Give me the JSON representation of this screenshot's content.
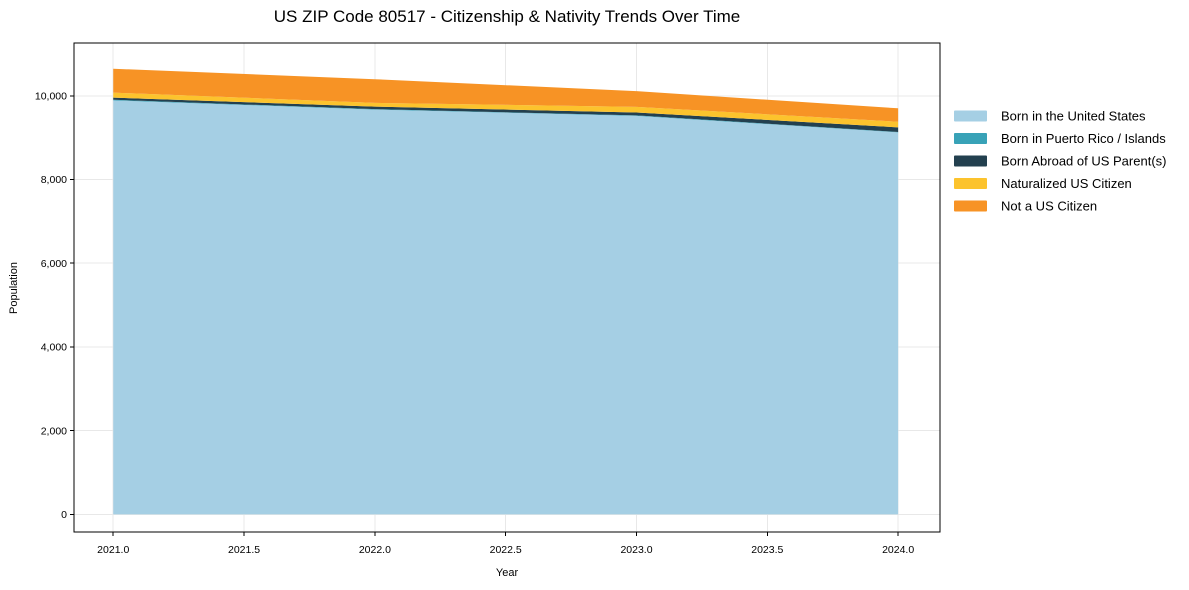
{
  "figure": {
    "background": "#ffffff",
    "frame_color": "#000000",
    "text_color": "#000000"
  },
  "chart_data": {
    "type": "area",
    "stacked": true,
    "title": "US ZIP Code 80517 - Citizenship & Nativity Trends Over Time",
    "xlabel": "Year",
    "ylabel": "Population",
    "x": [
      2021,
      2022,
      2023,
      2024
    ],
    "series": [
      {
        "name": "Born in the United States",
        "color": "#a5cfe4",
        "values": [
          9890,
          9670,
          9520,
          9125
        ]
      },
      {
        "name": "Born in Puerto Rico / Islands",
        "color": "#38a2b7",
        "values": [
          15,
          10,
          10,
          10
        ]
      },
      {
        "name": "Born Abroad of US Parent(s)",
        "color": "#23404f",
        "values": [
          50,
          60,
          70,
          110
        ]
      },
      {
        "name": "Naturalized US Citizen",
        "color": "#fcc32d",
        "values": [
          120,
          90,
          135,
          135
        ]
      },
      {
        "name": "Not a US Citizen",
        "color": "#f79325",
        "values": [
          570,
          565,
          375,
          320
        ]
      }
    ],
    "totals": [
      10645,
      10395,
      10110,
      9700
    ],
    "xlim": [
      2020.85,
      2024.16
    ],
    "ylim": [
      -420,
      11260
    ],
    "xticks": [
      {
        "v": 2021.0,
        "label": "2021.0"
      },
      {
        "v": 2021.5,
        "label": "2021.5"
      },
      {
        "v": 2022.0,
        "label": "2022.0"
      },
      {
        "v": 2022.5,
        "label": "2022.5"
      },
      {
        "v": 2023.0,
        "label": "2023.0"
      },
      {
        "v": 2023.5,
        "label": "2023.5"
      },
      {
        "v": 2024.0,
        "label": "2024.0"
      }
    ],
    "yticks": [
      {
        "v": 0,
        "label": "0"
      },
      {
        "v": 2000,
        "label": "2,000"
      },
      {
        "v": 4000,
        "label": "4,000"
      },
      {
        "v": 6000,
        "label": "6,000"
      },
      {
        "v": 8000,
        "label": "8,000"
      },
      {
        "v": 10000,
        "label": "10,000"
      }
    ],
    "grid": true,
    "grid_color": "#e8e8e8",
    "legend_position": "right"
  }
}
